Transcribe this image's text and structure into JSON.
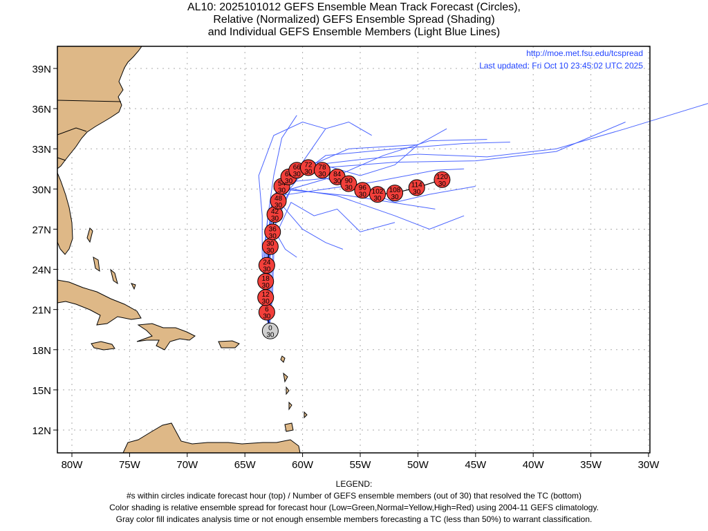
{
  "title": {
    "line1": "AL10: 2025101012 GEFS Ensemble Mean Track Forecast (Circles),",
    "line2": "Relative (Normalized) GEFS Ensemble Spread (Shading)",
    "line3": "and Individual GEFS Ensemble Members (Light Blue Lines)"
  },
  "header_info": {
    "url": "http://moe.met.fsu.edu/tcspread",
    "updated": "Last updated: Fri Oct 10 23:45:02 UTC 2025"
  },
  "axes": {
    "lon_labels": [
      "80W",
      "75W",
      "70W",
      "65W",
      "60W",
      "55W",
      "50W",
      "45W",
      "40W",
      "35W",
      "30W"
    ],
    "lon_values": [
      80,
      75,
      70,
      65,
      60,
      55,
      50,
      45,
      40,
      35,
      30
    ],
    "lat_labels": [
      "39N",
      "36N",
      "33N",
      "30N",
      "27N",
      "24N",
      "21N",
      "18N",
      "15N",
      "12N"
    ],
    "lat_values": [
      39,
      36,
      33,
      30,
      27,
      24,
      21,
      18,
      15,
      12
    ],
    "lon_range_west": [
      81.26,
      29.9
    ],
    "lat_range": [
      10.3,
      40.65
    ]
  },
  "colors": {
    "circle_fill": "#f23f3a",
    "analysis_fill": "#d0d0d0",
    "member_line": "#4a64ff",
    "land": "#deb887",
    "info_text": "#2244ff"
  },
  "chart_data": {
    "type": "scatter",
    "mean_track": [
      {
        "hour": "0",
        "members": "30",
        "lon": -62.8,
        "lat": 19.4,
        "gray": true
      },
      {
        "hour": "6",
        "members": "30",
        "lon": -63.1,
        "lat": 20.8
      },
      {
        "hour": "12",
        "members": "30",
        "lon": -63.2,
        "lat": 21.9
      },
      {
        "hour": "18",
        "members": "30",
        "lon": -63.2,
        "lat": 23.1
      },
      {
        "hour": "24",
        "members": "30",
        "lon": -63.1,
        "lat": 24.3
      },
      {
        "hour": "30",
        "members": "30",
        "lon": -62.8,
        "lat": 25.7
      },
      {
        "hour": "36",
        "members": "30",
        "lon": -62.6,
        "lat": 26.8
      },
      {
        "hour": "42",
        "members": "30",
        "lon": -62.4,
        "lat": 28.1
      },
      {
        "hour": "48",
        "members": "30",
        "lon": -62.1,
        "lat": 29.1
      },
      {
        "hour": "54",
        "members": "30",
        "lon": -61.8,
        "lat": 30.2
      },
      {
        "hour": "60",
        "members": "30",
        "lon": -61.2,
        "lat": 30.9
      },
      {
        "hour": "66",
        "members": "30",
        "lon": -60.5,
        "lat": 31.4
      },
      {
        "hour": "72",
        "members": "30",
        "lon": -59.5,
        "lat": 31.6
      },
      {
        "hour": "78",
        "members": "30",
        "lon": -58.3,
        "lat": 31.4
      },
      {
        "hour": "84",
        "members": "30",
        "lon": -57.0,
        "lat": 30.9
      },
      {
        "hour": "90",
        "members": "30",
        "lon": -56.0,
        "lat": 30.4
      },
      {
        "hour": "96",
        "members": "30",
        "lon": -54.8,
        "lat": 29.9
      },
      {
        "hour": "102",
        "members": "30",
        "lon": -53.5,
        "lat": 29.6
      },
      {
        "hour": "108",
        "members": "30",
        "lon": -52.0,
        "lat": 29.7
      },
      {
        "hour": "114",
        "members": "30",
        "lon": -50.1,
        "lat": 30.1
      },
      {
        "hour": "120",
        "members": "30",
        "lon": -47.9,
        "lat": 30.7
      }
    ],
    "member_tracks": [
      [
        [
          -62.9,
          19.4
        ],
        [
          -63.2,
          22
        ],
        [
          -63.3,
          25
        ],
        [
          -63,
          28
        ],
        [
          -62,
          30.5
        ],
        [
          -59,
          31.8
        ],
        [
          -55,
          32.2
        ],
        [
          -50,
          32.6
        ],
        [
          -44,
          32.4
        ],
        [
          -38,
          33
        ],
        [
          -32,
          34.5
        ],
        [
          -24.8,
          36.4
        ]
      ],
      [
        [
          -62.9,
          19.4
        ],
        [
          -63.1,
          22
        ],
        [
          -63.2,
          25
        ],
        [
          -62.8,
          28
        ],
        [
          -61.5,
          30.8
        ],
        [
          -58,
          31.6
        ],
        [
          -52,
          32
        ],
        [
          -45,
          32.1
        ],
        [
          -38,
          32.8
        ],
        [
          -32,
          35.0
        ]
      ],
      [
        [
          -62.9,
          19.4
        ],
        [
          -63,
          22
        ],
        [
          -63.1,
          25.5
        ],
        [
          -62.5,
          28.5
        ],
        [
          -60,
          31.2
        ],
        [
          -58,
          32.5
        ],
        [
          -52,
          33
        ],
        [
          -46,
          33.4
        ],
        [
          -42,
          33.5
        ]
      ],
      [
        [
          -62.9,
          19.4
        ],
        [
          -63.3,
          22
        ],
        [
          -63.5,
          25
        ],
        [
          -63.5,
          28
        ],
        [
          -63.8,
          31
        ],
        [
          -62.5,
          34
        ],
        [
          -60,
          35
        ],
        [
          -58,
          34.5
        ]
      ],
      [
        [
          -62.9,
          19.4
        ],
        [
          -62.8,
          22
        ],
        [
          -62.8,
          25
        ],
        [
          -62,
          29
        ],
        [
          -60,
          27
        ],
        [
          -58,
          26
        ],
        [
          -56.5,
          25.5
        ]
      ],
      [
        [
          -62.9,
          19.4
        ],
        [
          -62.9,
          22
        ],
        [
          -62.9,
          25.5
        ],
        [
          -61,
          29
        ],
        [
          -59,
          28
        ],
        [
          -57,
          28.5
        ],
        [
          -55,
          26.8
        ],
        [
          -52,
          27.5
        ]
      ],
      [
        [
          -62.9,
          19.4
        ],
        [
          -63,
          22.5
        ],
        [
          -62.9,
          26
        ],
        [
          -62,
          29.5
        ],
        [
          -58,
          30
        ],
        [
          -54,
          30.5
        ],
        [
          -48.5,
          31.4
        ],
        [
          -46,
          31.5
        ]
      ],
      [
        [
          -62.9,
          19.4
        ],
        [
          -63.1,
          23
        ],
        [
          -62.8,
          26.5
        ],
        [
          -61,
          30
        ],
        [
          -57,
          29.5
        ],
        [
          -52,
          28
        ],
        [
          -49,
          27
        ],
        [
          -46,
          28
        ]
      ],
      [
        [
          -62.9,
          19.4
        ],
        [
          -63.2,
          23
        ],
        [
          -63,
          26.5
        ],
        [
          -62,
          30
        ],
        [
          -60,
          31.5
        ],
        [
          -56,
          33
        ],
        [
          -50,
          33.3
        ],
        [
          -47.5,
          34.5
        ]
      ],
      [
        [
          -62.9,
          19.4
        ],
        [
          -62.7,
          22
        ],
        [
          -62.6,
          25
        ],
        [
          -62.5,
          27
        ],
        [
          -61.5,
          25.5
        ],
        [
          -60.5,
          24.9
        ]
      ],
      [
        [
          -62.9,
          19.4
        ],
        [
          -63,
          22
        ],
        [
          -63,
          25.5
        ],
        [
          -62.5,
          29
        ],
        [
          -60,
          32
        ],
        [
          -58,
          34.5
        ],
        [
          -56,
          35
        ],
        [
          -54,
          34
        ]
      ],
      [
        [
          -62.9,
          19.4
        ],
        [
          -63.1,
          22
        ],
        [
          -62.9,
          26
        ],
        [
          -62,
          30
        ],
        [
          -56,
          29.5
        ],
        [
          -50,
          28.7
        ],
        [
          -48.5,
          28.5
        ]
      ],
      [
        [
          -62.9,
          19.4
        ],
        [
          -63,
          22.5
        ],
        [
          -62.9,
          26
        ],
        [
          -62.7,
          29
        ],
        [
          -61.5,
          31
        ],
        [
          -59,
          32
        ],
        [
          -55,
          31
        ],
        [
          -52,
          31.8
        ],
        [
          -50,
          33.3
        ]
      ],
      [
        [
          -62.9,
          19.4
        ],
        [
          -63.4,
          22
        ],
        [
          -63.4,
          25
        ],
        [
          -63,
          28
        ],
        [
          -62.5,
          31
        ],
        [
          -61.8,
          33.8
        ],
        [
          -60.5,
          35.5
        ]
      ],
      [
        [
          -62.9,
          19.4
        ],
        [
          -63,
          23
        ],
        [
          -62.7,
          27
        ],
        [
          -61.5,
          30.5
        ],
        [
          -58,
          30.8
        ],
        [
          -55,
          30
        ],
        [
          -52,
          29
        ],
        [
          -49,
          29.6
        ],
        [
          -45,
          30.2
        ]
      ],
      [
        [
          -62.9,
          19.4
        ],
        [
          -62.6,
          22
        ],
        [
          -62.5,
          25
        ],
        [
          -62.3,
          28
        ],
        [
          -61,
          30
        ],
        [
          -57,
          31
        ],
        [
          -53,
          32.5
        ],
        [
          -49,
          33.6
        ],
        [
          -44,
          33.7
        ]
      ]
    ]
  },
  "legend": {
    "heading": "LEGEND:",
    "line1": "#s within circles indicate forecast hour (top) / Number of GEFS ensemble members (out of 30) that resolved the TC (bottom)",
    "line2": "Color shading is relative ensemble spread for forecast hour (Low=Green,Normal=Yellow,High=Red) using 2004-11 GEFS climatology.",
    "line3": "Gray color fill indicates analysis time or not enough ensemble members forecasting a TC (less than 50%) to warrant classification."
  }
}
